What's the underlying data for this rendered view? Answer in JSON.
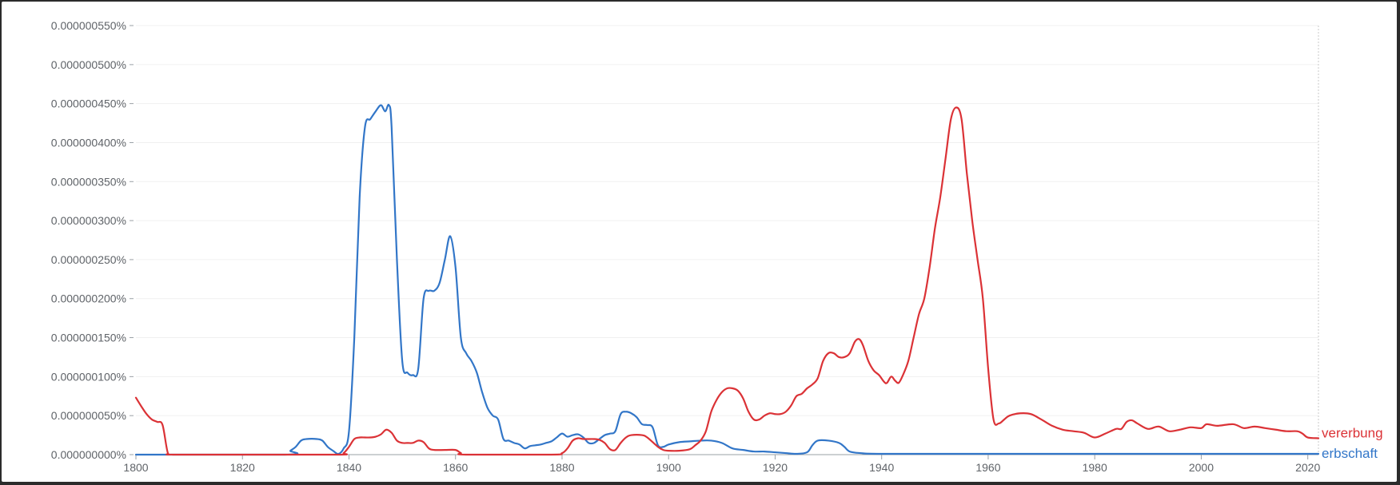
{
  "chart_data": {
    "type": "line",
    "title": "",
    "xlabel": "",
    "ylabel": "",
    "xlim": [
      1800,
      2022
    ],
    "ylim": [
      0,
      5.5e-09
    ],
    "x_ticks": [
      1800,
      1820,
      1840,
      1860,
      1880,
      1900,
      1920,
      1940,
      1960,
      1980,
      2000,
      2020
    ],
    "x_tick_labels": [
      "1800",
      "1820",
      "1840",
      "1860",
      "1880",
      "1900",
      "1920",
      "1940",
      "1960",
      "1980",
      "2000",
      "2020"
    ],
    "y_ticks": [
      0,
      5e-10,
      1e-09,
      1.5e-09,
      2e-09,
      2.5e-09,
      3e-09,
      3.5e-09,
      4e-09,
      4.5e-09,
      5e-09,
      5.5e-09
    ],
    "y_tick_labels": [
      "0.000000000%",
      "0.000000050%",
      "0.000000100%",
      "0.000000150%",
      "0.000000200%",
      "0.000000250%",
      "0.000000300%",
      "0.000000350%",
      "0.000000400%",
      "0.000000450%",
      "0.000000500%",
      "0.000000550%"
    ],
    "grid": true,
    "legend": "end-of-line labels",
    "series": [
      {
        "name": "vererbung",
        "color": "#db3236",
        "points": [
          [
            1800,
            7.3e-10
          ],
          [
            1801,
            6.2e-10
          ],
          [
            1802,
            5.2e-10
          ],
          [
            1803,
            4.5e-10
          ],
          [
            1804,
            4.2e-10
          ],
          [
            1805,
            3.8e-10
          ],
          [
            1806,
            2e-11
          ],
          [
            1807,
            0
          ],
          [
            1820,
            0
          ],
          [
            1838,
            0
          ],
          [
            1839,
            2e-11
          ],
          [
            1840,
            1e-10
          ],
          [
            1841,
            2e-10
          ],
          [
            1842,
            2.2e-10
          ],
          [
            1843,
            2.2e-10
          ],
          [
            1844,
            2.2e-10
          ],
          [
            1845,
            2.3e-10
          ],
          [
            1846,
            2.6e-10
          ],
          [
            1847,
            3.2e-10
          ],
          [
            1848,
            2.8e-10
          ],
          [
            1849,
            1.8e-10
          ],
          [
            1850,
            1.5e-10
          ],
          [
            1851,
            1.5e-10
          ],
          [
            1852,
            1.5e-10
          ],
          [
            1853,
            1.8e-10
          ],
          [
            1854,
            1.6e-10
          ],
          [
            1855,
            8e-11
          ],
          [
            1856,
            6e-11
          ],
          [
            1858,
            6e-11
          ],
          [
            1860,
            6e-11
          ],
          [
            1861,
            2e-11
          ],
          [
            1862,
            0
          ],
          [
            1878,
            0
          ],
          [
            1880,
            2e-11
          ],
          [
            1881,
            8e-11
          ],
          [
            1882,
            1.8e-10
          ],
          [
            1883,
            2.1e-10
          ],
          [
            1884,
            2e-10
          ],
          [
            1886,
            2e-10
          ],
          [
            1887,
            1.9e-10
          ],
          [
            1888,
            1.5e-10
          ],
          [
            1889,
            7e-11
          ],
          [
            1890,
            6e-11
          ],
          [
            1891,
            1.5e-10
          ],
          [
            1892,
            2.2e-10
          ],
          [
            1893,
            2.5e-10
          ],
          [
            1895,
            2.5e-10
          ],
          [
            1896,
            2.2e-10
          ],
          [
            1898,
            1e-10
          ],
          [
            1899,
            6e-11
          ],
          [
            1900,
            5e-11
          ],
          [
            1902,
            5e-11
          ],
          [
            1904,
            7e-11
          ],
          [
            1905,
            1.2e-10
          ],
          [
            1906,
            1.8e-10
          ],
          [
            1907,
            3e-10
          ],
          [
            1908,
            5.5e-10
          ],
          [
            1909,
            7e-10
          ],
          [
            1910,
            8e-10
          ],
          [
            1911,
            8.5e-10
          ],
          [
            1912,
            8.5e-10
          ],
          [
            1913,
            8.2e-10
          ],
          [
            1914,
            7.2e-10
          ],
          [
            1915,
            5.5e-10
          ],
          [
            1916,
            4.5e-10
          ],
          [
            1917,
            4.5e-10
          ],
          [
            1918,
            5e-10
          ],
          [
            1919,
            5.3e-10
          ],
          [
            1920,
            5.2e-10
          ],
          [
            1921,
            5.2e-10
          ],
          [
            1922,
            5.5e-10
          ],
          [
            1923,
            6.3e-10
          ],
          [
            1924,
            7.5e-10
          ],
          [
            1925,
            7.8e-10
          ],
          [
            1926,
            8.5e-10
          ],
          [
            1927,
            9e-10
          ],
          [
            1928,
            9.8e-10
          ],
          [
            1929,
            1.2e-09
          ],
          [
            1930,
            1.3e-09
          ],
          [
            1931,
            1.3e-09
          ],
          [
            1932,
            1.25e-09
          ],
          [
            1933,
            1.25e-09
          ],
          [
            1934,
            1.3e-09
          ],
          [
            1935,
            1.45e-09
          ],
          [
            1935.8,
            1.48e-09
          ],
          [
            1936.5,
            1.4e-09
          ],
          [
            1937.5,
            1.2e-09
          ],
          [
            1938.5,
            1.08e-09
          ],
          [
            1939.5,
            1.02e-09
          ],
          [
            1940.5,
            9.3e-10
          ],
          [
            1941,
            9.2e-10
          ],
          [
            1941.8,
            1e-09
          ],
          [
            1942.5,
            9.5e-10
          ],
          [
            1943.2,
            9.2e-10
          ],
          [
            1944,
            1.02e-09
          ],
          [
            1945,
            1.2e-09
          ],
          [
            1946,
            1.5e-09
          ],
          [
            1947,
            1.8e-09
          ],
          [
            1948,
            2e-09
          ],
          [
            1949,
            2.4e-09
          ],
          [
            1950,
            2.9e-09
          ],
          [
            1951,
            3.3e-09
          ],
          [
            1952,
            3.8e-09
          ],
          [
            1953,
            4.3e-09
          ],
          [
            1954,
            4.45e-09
          ],
          [
            1955,
            4.3e-09
          ],
          [
            1956,
            3.6e-09
          ],
          [
            1957,
            3e-09
          ],
          [
            1958,
            2.5e-09
          ],
          [
            1959,
            2e-09
          ],
          [
            1960,
            1.1e-09
          ],
          [
            1961,
            4.5e-10
          ],
          [
            1962,
            4e-10
          ],
          [
            1963,
            4.5e-10
          ],
          [
            1964,
            5e-10
          ],
          [
            1966,
            5.3e-10
          ],
          [
            1968,
            5.2e-10
          ],
          [
            1970,
            4.5e-10
          ],
          [
            1972,
            3.7e-10
          ],
          [
            1974,
            3.2e-10
          ],
          [
            1976,
            3e-10
          ],
          [
            1978,
            2.8e-10
          ],
          [
            1980,
            2.2e-10
          ],
          [
            1982,
            2.7e-10
          ],
          [
            1984,
            3.3e-10
          ],
          [
            1985,
            3.3e-10
          ],
          [
            1986,
            4.2e-10
          ],
          [
            1987,
            4.4e-10
          ],
          [
            1988,
            4e-10
          ],
          [
            1990,
            3.3e-10
          ],
          [
            1992,
            3.6e-10
          ],
          [
            1994,
            3e-10
          ],
          [
            1996,
            3.2e-10
          ],
          [
            1998,
            3.5e-10
          ],
          [
            2000,
            3.4e-10
          ],
          [
            2001,
            3.9e-10
          ],
          [
            2003,
            3.7e-10
          ],
          [
            2006,
            3.9e-10
          ],
          [
            2008,
            3.4e-10
          ],
          [
            2010,
            3.6e-10
          ],
          [
            2012,
            3.4e-10
          ],
          [
            2014,
            3.2e-10
          ],
          [
            2016,
            3e-10
          ],
          [
            2018,
            3e-10
          ],
          [
            2019,
            2.7e-10
          ],
          [
            2020,
            2.2e-10
          ],
          [
            2022,
            2.1e-10
          ]
        ]
      },
      {
        "name": "erbschaft",
        "color": "#3276c8",
        "points": [
          [
            1800,
            0
          ],
          [
            1828,
            0
          ],
          [
            1829,
            5e-11
          ],
          [
            1830,
            1e-10
          ],
          [
            1831,
            1.8e-10
          ],
          [
            1832,
            2e-10
          ],
          [
            1834,
            2e-10
          ],
          [
            1835,
            1.8e-10
          ],
          [
            1836,
            1e-10
          ],
          [
            1837,
            5e-11
          ],
          [
            1838,
            1e-11
          ],
          [
            1839,
            8e-11
          ],
          [
            1840,
            3e-10
          ],
          [
            1841,
            1.5e-09
          ],
          [
            1842,
            3.3e-09
          ],
          [
            1843,
            4.2e-09
          ],
          [
            1844,
            4.3e-09
          ],
          [
            1845,
            4.4e-09
          ],
          [
            1846,
            4.48e-09
          ],
          [
            1846.8,
            4.4e-09
          ],
          [
            1847.5,
            4.48e-09
          ],
          [
            1848,
            4.2e-09
          ],
          [
            1849,
            2.5e-09
          ],
          [
            1850,
            1.2e-09
          ],
          [
            1851,
            1.05e-09
          ],
          [
            1852,
            1.02e-09
          ],
          [
            1853,
            1.1e-09
          ],
          [
            1854,
            2e-09
          ],
          [
            1855,
            2.1e-09
          ],
          [
            1856,
            2.1e-09
          ],
          [
            1857,
            2.2e-09
          ],
          [
            1858,
            2.5e-09
          ],
          [
            1859,
            2.8e-09
          ],
          [
            1860,
            2.4e-09
          ],
          [
            1861,
            1.5e-09
          ],
          [
            1862,
            1.3e-09
          ],
          [
            1863,
            1.2e-09
          ],
          [
            1864,
            1.05e-09
          ],
          [
            1865,
            8e-10
          ],
          [
            1866,
            6e-10
          ],
          [
            1867,
            5e-10
          ],
          [
            1868,
            4.5e-10
          ],
          [
            1869,
            2e-10
          ],
          [
            1870,
            1.8e-10
          ],
          [
            1871,
            1.5e-10
          ],
          [
            1872,
            1.3e-10
          ],
          [
            1873,
            8e-11
          ],
          [
            1874,
            1.1e-10
          ],
          [
            1875,
            1.2e-10
          ],
          [
            1876,
            1.3e-10
          ],
          [
            1877,
            1.5e-10
          ],
          [
            1878,
            1.7e-10
          ],
          [
            1879,
            2.2e-10
          ],
          [
            1880,
            2.7e-10
          ],
          [
            1881,
            2.3e-10
          ],
          [
            1882,
            2.5e-10
          ],
          [
            1883,
            2.6e-10
          ],
          [
            1884,
            2.2e-10
          ],
          [
            1885,
            1.5e-10
          ],
          [
            1886,
            1.5e-10
          ],
          [
            1887,
            2e-10
          ],
          [
            1888,
            2.5e-10
          ],
          [
            1889,
            2.7e-10
          ],
          [
            1890,
            3e-10
          ],
          [
            1891,
            5.2e-10
          ],
          [
            1892,
            5.5e-10
          ],
          [
            1893,
            5.3e-10
          ],
          [
            1894,
            4.8e-10
          ],
          [
            1895,
            3.9e-10
          ],
          [
            1896,
            3.8e-10
          ],
          [
            1897,
            3.5e-10
          ],
          [
            1898,
            1.2e-10
          ],
          [
            1899,
            1e-10
          ],
          [
            1900,
            1.3e-10
          ],
          [
            1902,
            1.6e-10
          ],
          [
            1904,
            1.7e-10
          ],
          [
            1906,
            1.8e-10
          ],
          [
            1908,
            1.8e-10
          ],
          [
            1910,
            1.5e-10
          ],
          [
            1912,
            8e-11
          ],
          [
            1914,
            6e-11
          ],
          [
            1916,
            4e-11
          ],
          [
            1918,
            4e-11
          ],
          [
            1920,
            3e-11
          ],
          [
            1922,
            2e-11
          ],
          [
            1924,
            1e-11
          ],
          [
            1926,
            3e-11
          ],
          [
            1927,
            1.2e-10
          ],
          [
            1928,
            1.8e-10
          ],
          [
            1930,
            1.8e-10
          ],
          [
            1932,
            1.5e-10
          ],
          [
            1933,
            1e-10
          ],
          [
            1934,
            4e-11
          ],
          [
            1936,
            2e-11
          ],
          [
            1940,
            1e-11
          ],
          [
            1960,
            1e-11
          ],
          [
            2000,
            1e-11
          ],
          [
            2022,
            1e-11
          ]
        ]
      }
    ]
  }
}
